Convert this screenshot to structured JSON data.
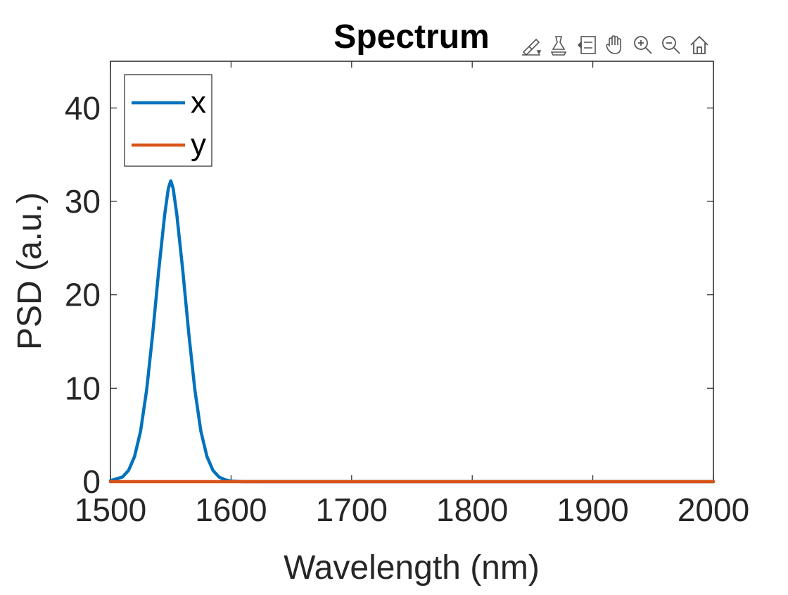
{
  "toolbar": {
    "icons": [
      "brush-edit-icon",
      "data-cursor-icon",
      "legend-icon",
      "pan-hand-icon",
      "zoom-in-icon",
      "zoom-out-icon",
      "home-icon"
    ]
  },
  "chart_data": {
    "type": "line",
    "title": "Spectrum",
    "xlabel": "Wavelength (nm)",
    "ylabel": "PSD (a.u.)",
    "xlim": [
      1500,
      2000
    ],
    "ylim": [
      0,
      45
    ],
    "xticks": [
      "1500",
      "1600",
      "1700",
      "1800",
      "1900",
      "2000"
    ],
    "yticks": [
      "0",
      "10",
      "20",
      "30",
      "40"
    ],
    "legend_position": "top-left",
    "grid": false,
    "series": [
      {
        "name": "x",
        "color": "#0072BD",
        "x": [
          1500,
          1510,
          1515,
          1520,
          1525,
          1530,
          1535,
          1540,
          1545,
          1548,
          1550,
          1552,
          1555,
          1560,
          1565,
          1570,
          1575,
          1580,
          1585,
          1590,
          1595,
          1600,
          1610,
          1620,
          1650,
          1700,
          1800,
          1900,
          2000
        ],
        "y": [
          0.1,
          0.5,
          1.2,
          2.7,
          5.4,
          9.8,
          15.8,
          22.6,
          28.6,
          31.4,
          32.2,
          31.4,
          28.6,
          22.6,
          15.8,
          9.8,
          5.4,
          2.7,
          1.2,
          0.5,
          0.2,
          0.05,
          0,
          0,
          0,
          0,
          0,
          0,
          0
        ]
      },
      {
        "name": "y",
        "color": "#D95319",
        "x": [
          1500,
          1600,
          1700,
          1800,
          1900,
          2000
        ],
        "y": [
          0,
          0,
          0,
          0,
          0,
          0
        ]
      }
    ]
  }
}
